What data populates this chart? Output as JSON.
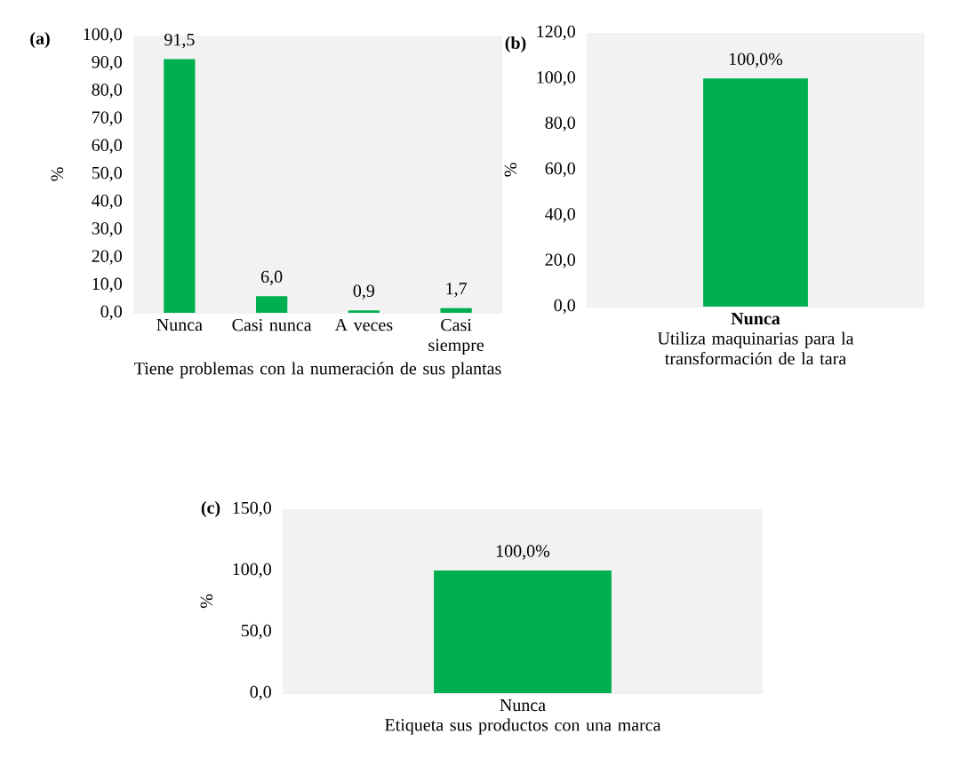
{
  "chart_data": [
    {
      "type": "bar",
      "annotations": [
        "(a)"
      ],
      "xlabel": "Tiene problemas con la numeración de sus plantas",
      "ylabel": "%",
      "categories": [
        "Nunca",
        "Casi nunca",
        "A veces",
        "Casi siempre"
      ],
      "values": [
        91.5,
        6.0,
        0.9,
        1.7
      ],
      "value_labels": [
        "91,5",
        "6,0",
        "0,9",
        "1,7"
      ],
      "color": "#00b050",
      "ylim": [
        0,
        100
      ],
      "yticks": [
        {
          "value": 0,
          "label": "0,0"
        },
        {
          "value": 10,
          "label": "10,0"
        },
        {
          "value": 20,
          "label": "20,0"
        },
        {
          "value": 30,
          "label": "30,0"
        },
        {
          "value": 40,
          "label": "40,0"
        },
        {
          "value": 50,
          "label": "50,0"
        },
        {
          "value": 60,
          "label": "60,0"
        },
        {
          "value": 70,
          "label": "70,0"
        },
        {
          "value": 80,
          "label": "80,0"
        },
        {
          "value": 90,
          "label": "90,0"
        },
        {
          "value": 100,
          "label": "100,0"
        }
      ]
    },
    {
      "type": "bar",
      "annotations": [
        "(b)"
      ],
      "xlabel": "Utiliza maquinarias para la transformación de la tara",
      "ylabel": "%",
      "categories": [
        "Nunca"
      ],
      "values": [
        100.0
      ],
      "value_labels": [
        "100,0%"
      ],
      "color": "#00b050",
      "ylim": [
        0,
        120
      ],
      "yticks": [
        {
          "value": 0,
          "label": "0,0"
        },
        {
          "value": 20,
          "label": "20,0"
        },
        {
          "value": 40,
          "label": "40,0"
        },
        {
          "value": 60,
          "label": "60,0"
        },
        {
          "value": 80,
          "label": "80,0"
        },
        {
          "value": 100,
          "label": "100,0"
        },
        {
          "value": 120,
          "label": "120,0"
        }
      ]
    },
    {
      "type": "bar",
      "annotations": [
        "(c)"
      ],
      "xlabel": "Etiqueta sus productos con una marca",
      "ylabel": "%",
      "categories": [
        "Nunca"
      ],
      "values": [
        100.0
      ],
      "value_labels": [
        "100,0%"
      ],
      "color": "#00b050",
      "ylim": [
        0,
        150
      ],
      "yticks": [
        {
          "value": 0,
          "label": "0,0"
        },
        {
          "value": 50,
          "label": "50,0"
        },
        {
          "value": 100,
          "label": "100,0"
        },
        {
          "value": 150,
          "label": "150,0"
        }
      ]
    }
  ]
}
